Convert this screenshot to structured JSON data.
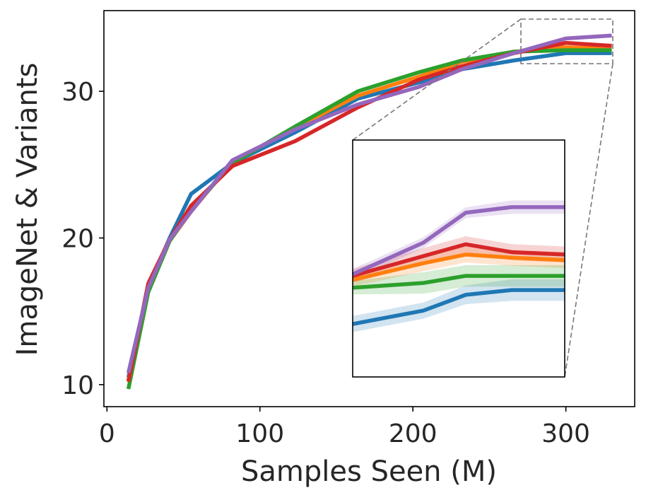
{
  "chart_data": {
    "type": "line",
    "title": "",
    "xlabel": "Samples Seen (M)",
    "ylabel": "ImageNet & Variants",
    "xlim": [
      -2,
      345
    ],
    "ylim": [
      8.5,
      35.5
    ],
    "xticks": [
      0,
      100,
      200,
      300
    ],
    "xtick_labels": [
      "0",
      "100",
      "200",
      "300"
    ],
    "yticks": [
      10,
      20,
      30
    ],
    "ytick_labels": [
      "10",
      "20",
      "30"
    ],
    "grid": false,
    "legend": "none",
    "series": [
      {
        "name": "blue",
        "color": "#1f77b4",
        "x": [
          14,
          27,
          41,
          55,
          82,
          123,
          164,
          204,
          232,
          266,
          300,
          330
        ],
        "y": [
          10.5,
          16.6,
          20.0,
          23.0,
          25.1,
          27.2,
          29.5,
          30.6,
          31.5,
          32.1,
          32.6,
          32.6
        ],
        "band": [
          0.06,
          0.06,
          0.06,
          0.06,
          0.06,
          0.06,
          0.06,
          0.06,
          0.06,
          0.07,
          0.08,
          0.08
        ]
      },
      {
        "name": "orange",
        "color": "#ff7f0e",
        "x": [
          14,
          27,
          41,
          55,
          82,
          123,
          164,
          204,
          232,
          266,
          300,
          330
        ],
        "y": [
          10.3,
          16.5,
          19.8,
          21.8,
          25.2,
          27.5,
          29.7,
          31.0,
          32.0,
          32.7,
          33.0,
          32.9
        ],
        "band": [
          0.05,
          0.05,
          0.05,
          0.05,
          0.05,
          0.05,
          0.05,
          0.05,
          0.06,
          0.06,
          0.06,
          0.06
        ]
      },
      {
        "name": "green",
        "color": "#2ca02c",
        "x": [
          14,
          27,
          41,
          55,
          82,
          123,
          164,
          204,
          232,
          266,
          300,
          330
        ],
        "y": [
          9.7,
          16.3,
          19.8,
          21.9,
          25.1,
          27.6,
          30.0,
          31.3,
          32.1,
          32.7,
          32.8,
          32.8
        ],
        "band": [
          0.05,
          0.05,
          0.05,
          0.05,
          0.05,
          0.05,
          0.05,
          0.05,
          0.08,
          0.08,
          0.08,
          0.08
        ]
      },
      {
        "name": "red",
        "color": "#d62728",
        "x": [
          14,
          27,
          41,
          55,
          82,
          123,
          164,
          204,
          232,
          266,
          300,
          330
        ],
        "y": [
          10.2,
          16.9,
          19.9,
          22.2,
          24.9,
          26.6,
          28.9,
          30.8,
          31.7,
          32.6,
          33.3,
          33.1
        ],
        "band": [
          0.05,
          0.05,
          0.05,
          0.05,
          0.05,
          0.05,
          0.05,
          0.05,
          0.06,
          0.06,
          0.06,
          0.06
        ]
      },
      {
        "name": "purple",
        "color": "#9467bd",
        "x": [
          14,
          27,
          41,
          55,
          82,
          123,
          164,
          204,
          232,
          266,
          300,
          330
        ],
        "y": [
          10.8,
          16.6,
          19.9,
          21.8,
          25.3,
          27.4,
          29.1,
          30.3,
          31.5,
          32.6,
          33.6,
          33.8
        ],
        "band": [
          0.04,
          0.04,
          0.04,
          0.04,
          0.04,
          0.04,
          0.04,
          0.04,
          0.04,
          0.04,
          0.05,
          0.05
        ]
      }
    ],
    "inset": {
      "xlim": [
        270,
        330
      ],
      "ylim": [
        31.5,
        34.5
      ],
      "series_y": {
        "blue": [
          32.17,
          32.34,
          32.54,
          32.6,
          32.6
        ],
        "orange": [
          32.73,
          32.94,
          33.05,
          33.01,
          32.98
        ],
        "green": [
          32.63,
          32.69,
          32.78,
          32.78,
          32.78
        ],
        "red": [
          32.78,
          33.03,
          33.18,
          33.08,
          33.05
        ],
        "purple": [
          32.8,
          33.2,
          33.58,
          33.65,
          33.65
        ]
      },
      "x": [
        270,
        290,
        302,
        315,
        330
      ]
    }
  }
}
